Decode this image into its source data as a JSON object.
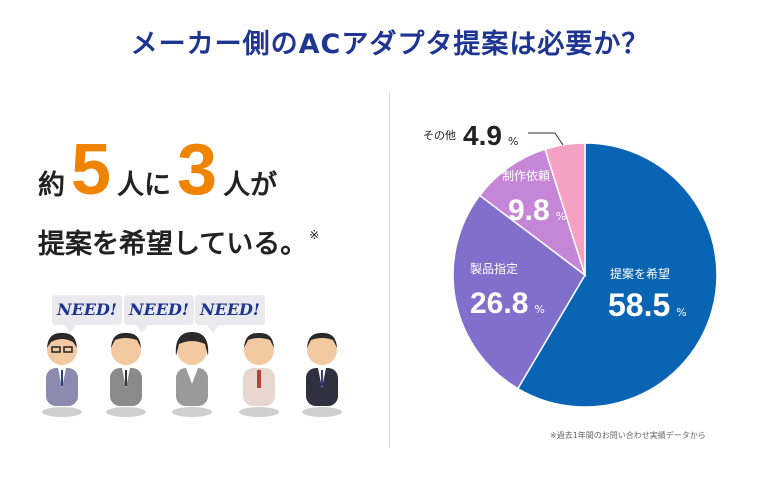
{
  "title": "メーカー側のACアダプタ提案は必要か？",
  "headline": {
    "part1": "約",
    "num1": "5",
    "part2": "人に",
    "num2": "3",
    "part3": "人が",
    "line2": "提案を希望している。",
    "mark": "※"
  },
  "need_labels": [
    "NEED!",
    "NEED!",
    "NEED!"
  ],
  "footnote": "※過去1年間のお問い合わせ実績データから",
  "colors": {
    "title": "#1e3591",
    "highlight": "#f08300"
  },
  "chart_data": {
    "type": "pie",
    "unit": "%",
    "slices": [
      {
        "label": "提案を希望",
        "value": 58.5,
        "color": "#0a64b4"
      },
      {
        "label": "製品指定",
        "value": 26.8,
        "color": "#8170cb"
      },
      {
        "label": "制作依頼",
        "value": 9.8,
        "color": "#c586d8"
      },
      {
        "label": "その他",
        "value": 4.9,
        "color": "#f4a1c5"
      }
    ]
  }
}
